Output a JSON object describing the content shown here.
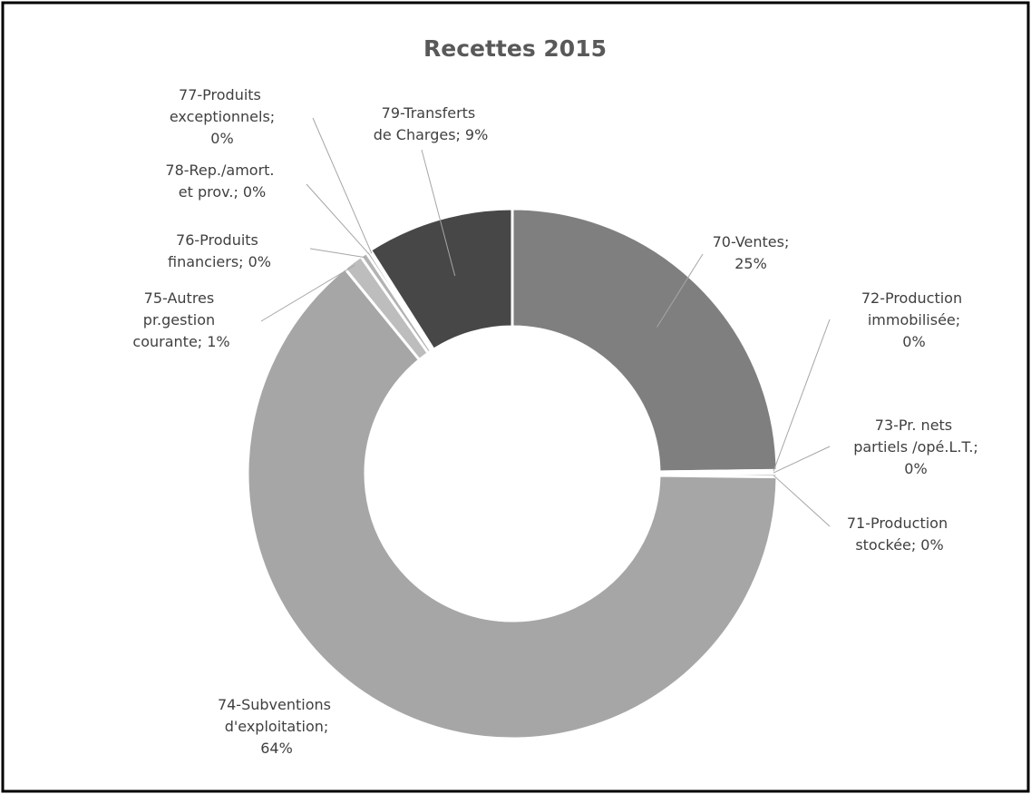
{
  "chart_data": {
    "type": "donut",
    "title": "Recettes 2015",
    "categories": [
      "70-Ventes;",
      "72-Production immobilisée;",
      "73-Pr. nets partiels /opé.L.T.;",
      "71-Production stockée;",
      "74-Subventions d'exploitation;",
      "75-Autres pr.gestion courante;",
      "76-Produits financiers;",
      "78-Rep./amort. et prov.;",
      "77-Produits exceptionnels;",
      "79-Transferts de Charges;"
    ],
    "values": [
      24.8,
      0.1,
      0.1,
      0.2,
      63.9,
      1.2,
      0.4,
      0.2,
      0.1,
      9.0
    ],
    "value_labels": [
      "25%",
      "0%",
      "0%",
      "0%",
      "64%",
      "1%",
      "0%",
      "0%",
      "0%",
      "9%"
    ],
    "colors": [
      "#7f7f7f",
      "#8c8c8c",
      "#999999",
      "#a0a0a0",
      "#a6a6a6",
      "#bdbdbd",
      "#b3b3b3",
      "#6e6e6e",
      "#5a5a5a",
      "#474747"
    ]
  }
}
